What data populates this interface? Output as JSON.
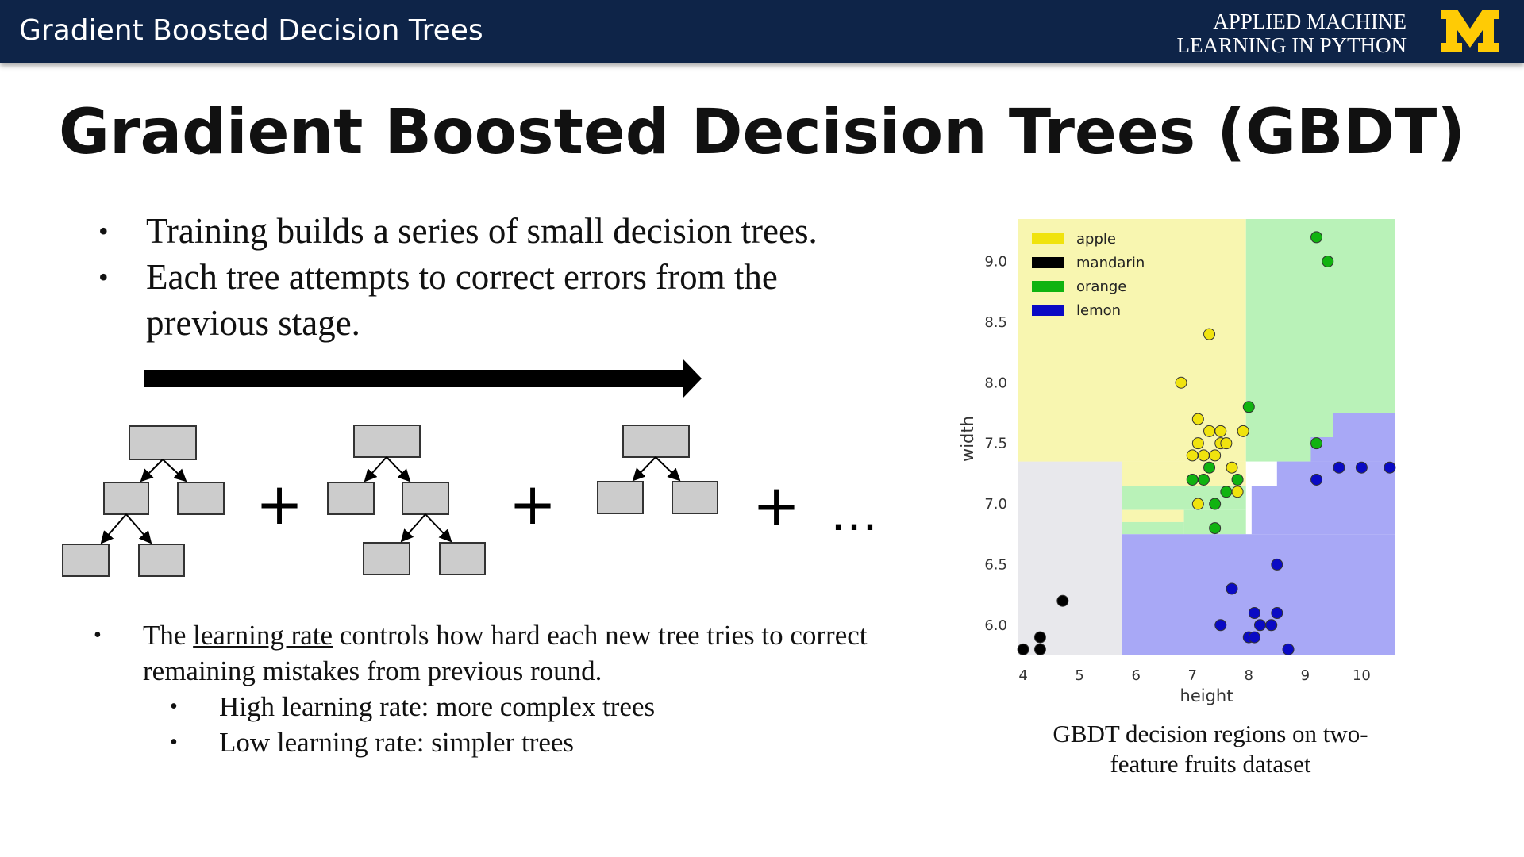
{
  "header": {
    "title": "Gradient Boosted Decision Trees",
    "course_line1": "APPLIED MACHINE",
    "course_line2": "LEARNING IN PYTHON",
    "logo_letter": "M"
  },
  "slide": {
    "title": "Gradient Boosted Decision Trees (GBDT)",
    "bullets": [
      "Training builds a series of small decision trees.",
      "Each tree attempts to correct errors from the previous stage."
    ],
    "diagram": {
      "plus": "+",
      "ellipsis": "…"
    },
    "lr_prefix": "The ",
    "lr_term": "learning rate",
    "lr_suffix": " controls how hard each new tree tries to correct remaining mistakes from previous round.",
    "sub_bullets": [
      "High learning rate: more complex trees",
      "Low learning rate: simpler trees"
    ],
    "caption": "GBDT decision regions on two-feature fruits dataset"
  },
  "chart_data": {
    "type": "scatter",
    "title": "",
    "xlabel": "height",
    "ylabel": "width",
    "xlim": [
      3.9,
      10.6
    ],
    "ylim": [
      5.75,
      9.35
    ],
    "xticks": [
      "4",
      "5",
      "6",
      "7",
      "8",
      "9",
      "10"
    ],
    "yticks": [
      "6.0",
      "6.5",
      "7.0",
      "7.5",
      "8.0",
      "8.5",
      "9.0"
    ],
    "legend_position": "top-left",
    "series": [
      {
        "name": "apple",
        "color": "#f0e30e",
        "points": [
          [
            7.3,
            8.4
          ],
          [
            6.8,
            8.0
          ],
          [
            7.1,
            7.7
          ],
          [
            7.3,
            7.6
          ],
          [
            7.5,
            7.6
          ],
          [
            7.9,
            7.6
          ],
          [
            7.1,
            7.5
          ],
          [
            7.5,
            7.5
          ],
          [
            7.6,
            7.5
          ],
          [
            7.0,
            7.4
          ],
          [
            7.2,
            7.4
          ],
          [
            7.4,
            7.4
          ],
          [
            7.7,
            7.3
          ],
          [
            7.8,
            7.1
          ],
          [
            7.1,
            7.0
          ]
        ]
      },
      {
        "name": "mandarin",
        "color": "#000000",
        "points": [
          [
            4.7,
            6.2
          ],
          [
            4.3,
            5.9
          ],
          [
            4.0,
            5.8
          ],
          [
            4.3,
            5.8
          ]
        ]
      },
      {
        "name": "orange",
        "color": "#10b310",
        "points": [
          [
            9.2,
            9.2
          ],
          [
            9.4,
            9.0
          ],
          [
            8.0,
            7.8
          ],
          [
            9.2,
            7.5
          ],
          [
            7.3,
            7.3
          ],
          [
            7.0,
            7.2
          ],
          [
            7.2,
            7.2
          ],
          [
            7.8,
            7.2
          ],
          [
            7.6,
            7.1
          ],
          [
            7.4,
            7.0
          ],
          [
            7.4,
            6.8
          ]
        ]
      },
      {
        "name": "lemon",
        "color": "#0a0ac4",
        "points": [
          [
            9.2,
            7.2
          ],
          [
            9.6,
            7.3
          ],
          [
            10.0,
            7.3
          ],
          [
            10.5,
            7.3
          ],
          [
            8.5,
            6.5
          ],
          [
            7.7,
            6.3
          ],
          [
            7.5,
            6.0
          ],
          [
            8.1,
            6.1
          ],
          [
            8.5,
            6.1
          ],
          [
            8.2,
            6.0
          ],
          [
            8.4,
            6.0
          ],
          [
            8.0,
            5.9
          ],
          [
            8.1,
            5.9
          ],
          [
            8.7,
            5.8
          ]
        ]
      }
    ],
    "regions": [
      {
        "label": "mandarin",
        "color": "#e8e8ec",
        "x": [
          3.9,
          5.75
        ],
        "y": [
          5.75,
          7.35
        ]
      },
      {
        "label": "apple",
        "color": "#f8f6b0",
        "x": [
          3.9,
          7.95
        ],
        "y": [
          7.35,
          9.35
        ]
      },
      {
        "label": "apple",
        "color": "#f8f6b0",
        "x": [
          3.9,
          5.75
        ],
        "y": [
          7.35,
          9.35
        ]
      },
      {
        "label": "orange",
        "color": "#b9f2b8",
        "x": [
          7.95,
          10.6
        ],
        "y": [
          7.35,
          9.35
        ]
      },
      {
        "label": "apple",
        "color": "#f8f6b0",
        "x": [
          5.75,
          7.95
        ],
        "y": [
          7.15,
          7.35
        ]
      },
      {
        "label": "orange",
        "color": "#b9f2b8",
        "x": [
          5.75,
          7.95
        ],
        "y": [
          6.95,
          7.15
        ]
      },
      {
        "label": "apple",
        "color": "#f8f6b0",
        "x": [
          5.75,
          6.85
        ],
        "y": [
          6.85,
          6.95
        ]
      },
      {
        "label": "orange",
        "color": "#b9f2b8",
        "x": [
          6.85,
          7.95
        ],
        "y": [
          6.75,
          6.95
        ]
      },
      {
        "label": "orange",
        "color": "#b9f2b8",
        "x": [
          5.75,
          6.85
        ],
        "y": [
          6.75,
          6.85
        ]
      },
      {
        "label": "lemon",
        "color": "#a8a8f6",
        "x": [
          5.75,
          10.6
        ],
        "y": [
          5.75,
          6.75
        ]
      },
      {
        "label": "lemon",
        "color": "#a8a8f6",
        "x": [
          8.05,
          10.6
        ],
        "y": [
          6.75,
          7.15
        ]
      },
      {
        "label": "lemon",
        "color": "#a8a8f6",
        "x": [
          8.5,
          10.6
        ],
        "y": [
          7.15,
          7.35
        ]
      },
      {
        "label": "lemon",
        "color": "#a8a8f6",
        "x": [
          9.1,
          10.6
        ],
        "y": [
          7.35,
          7.55
        ]
      },
      {
        "label": "lemon",
        "color": "#a8a8f6",
        "x": [
          9.5,
          10.6
        ],
        "y": [
          7.55,
          7.75
        ]
      }
    ]
  }
}
